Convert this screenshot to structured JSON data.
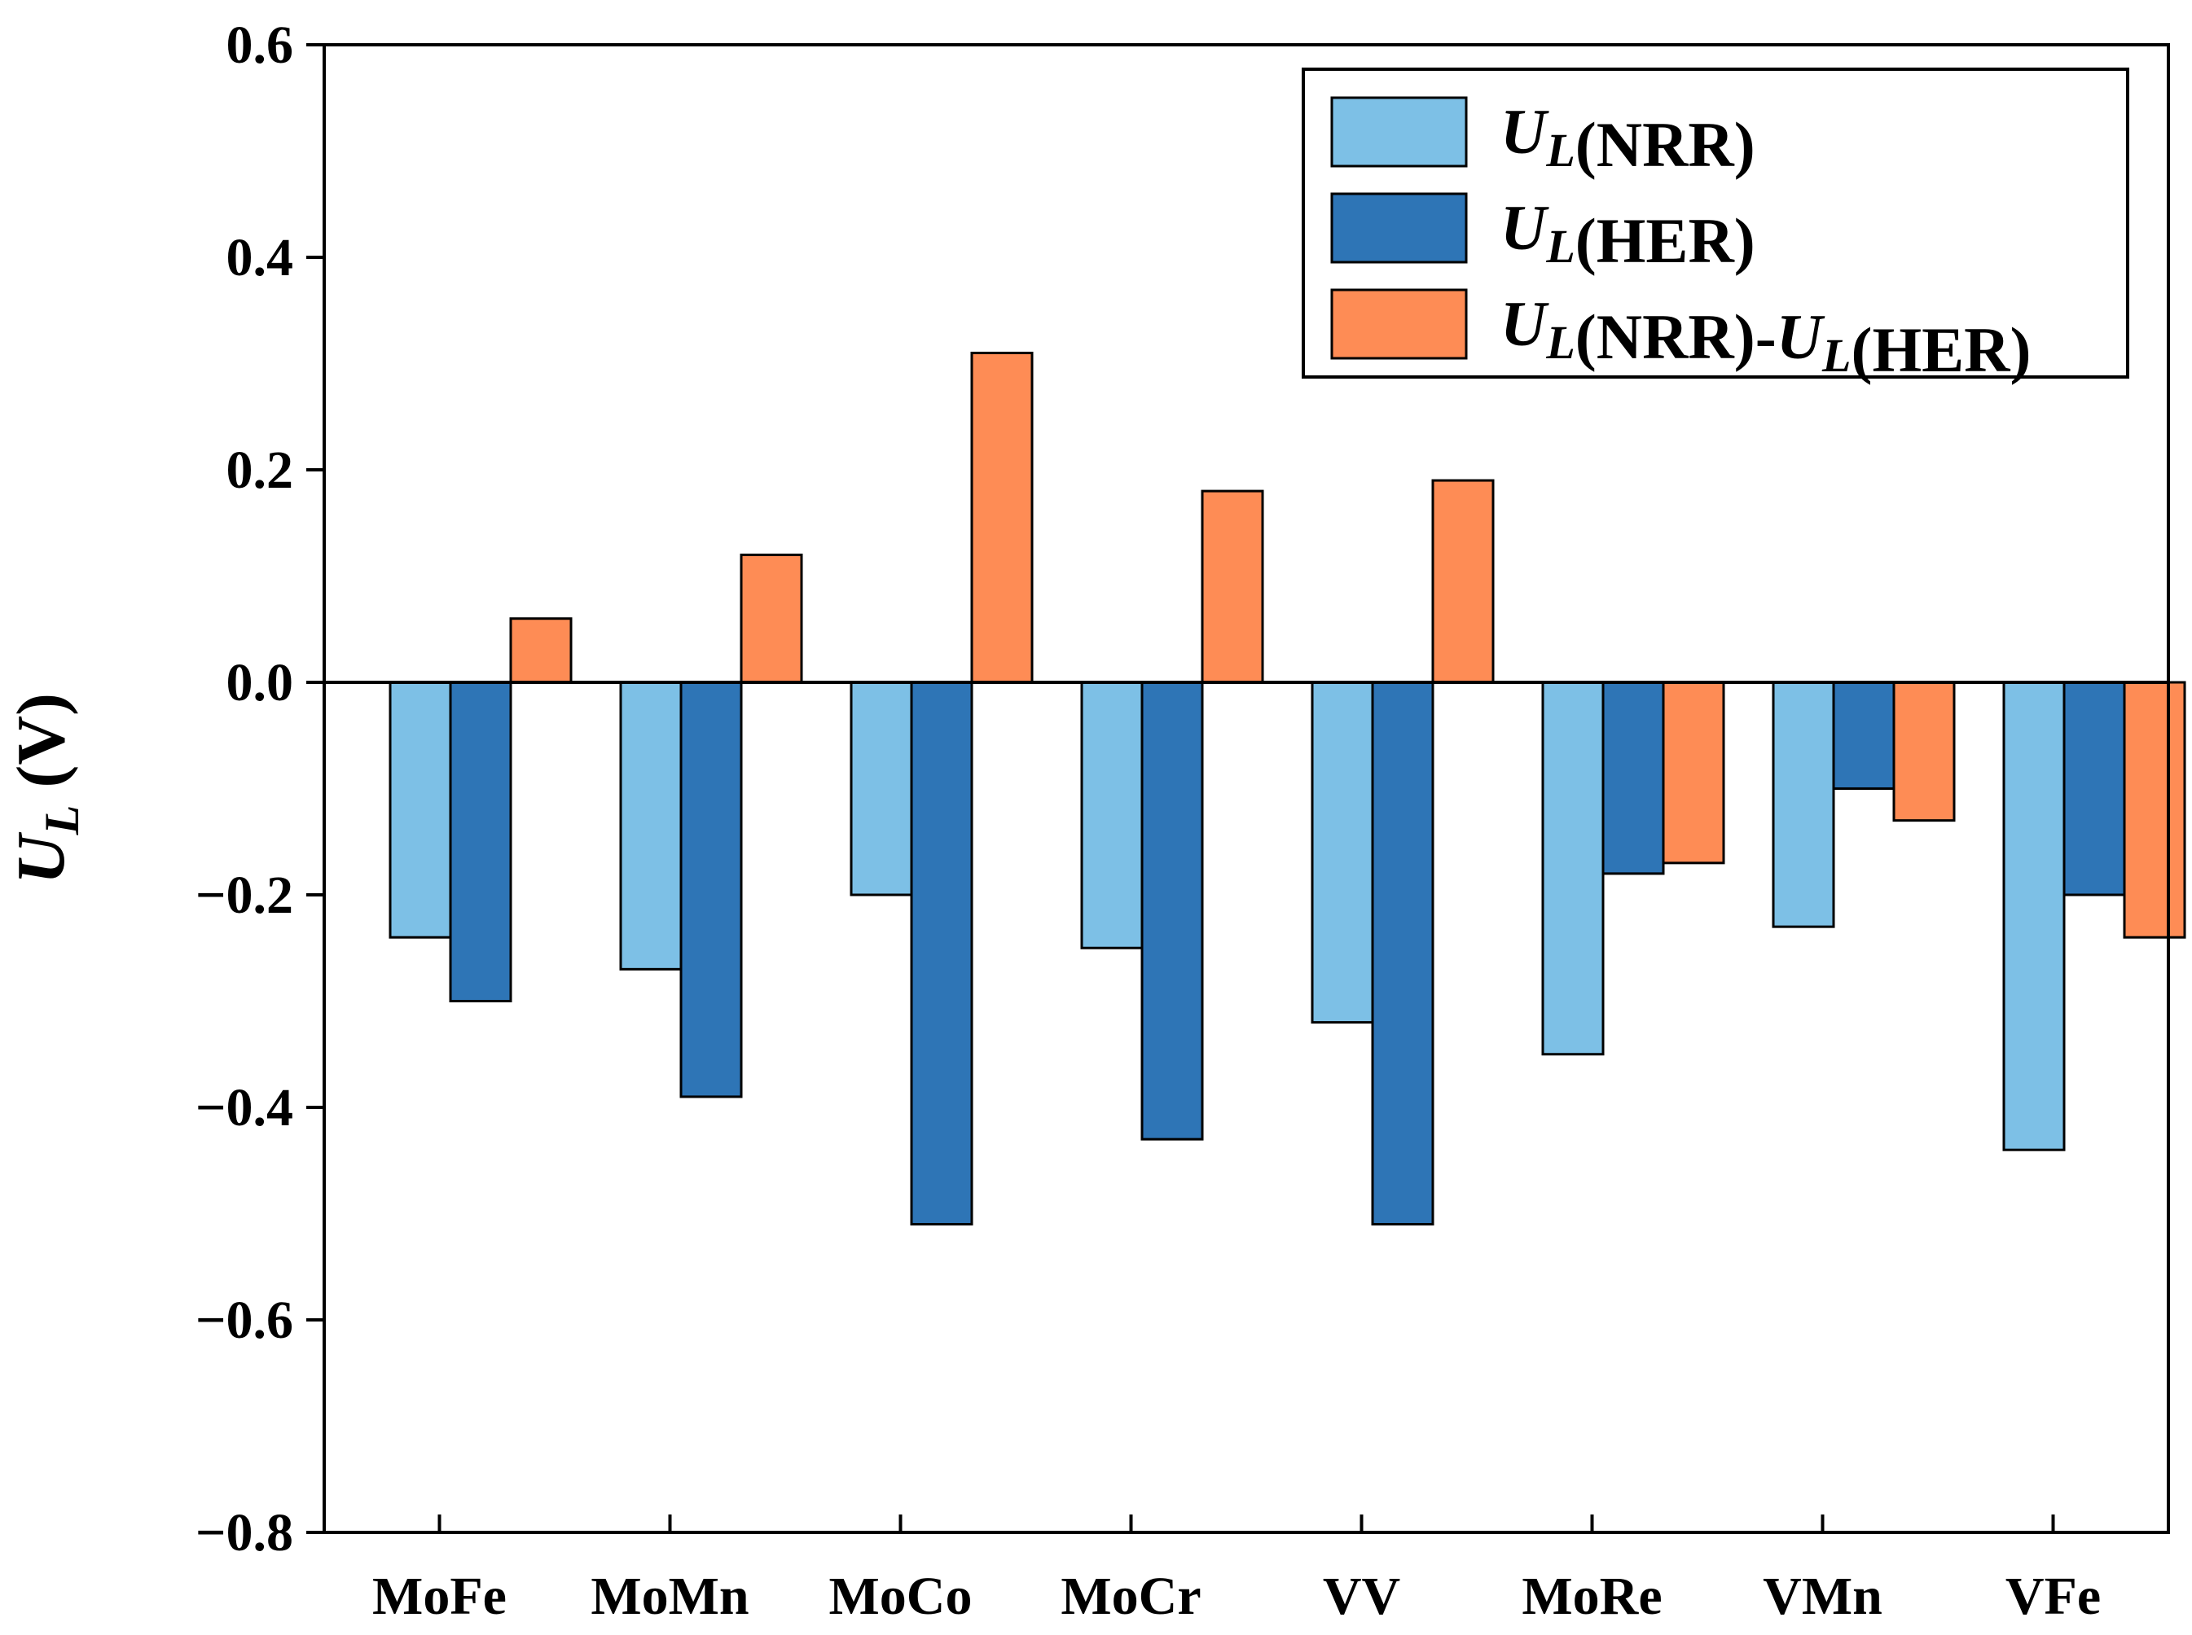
{
  "chart_data": {
    "type": "bar",
    "title": "",
    "xlabel": "",
    "ylabel": {
      "symbol": "U",
      "subscript": "L",
      "unit": "(V)"
    },
    "ylim": [
      -0.8,
      0.6
    ],
    "yticks": [
      0.6,
      0.4,
      0.2,
      0.0,
      -0.2,
      -0.4,
      -0.6,
      -0.8
    ],
    "ytick_labels": [
      "0.6",
      "0.4",
      "0.2",
      "0.0",
      "−0.2",
      "−0.4",
      "−0.6",
      "−0.8"
    ],
    "categories": [
      "MoFe",
      "MoMn",
      "MoCo",
      "MoCr",
      "VV",
      "MoRe",
      "VMn",
      "VFe"
    ],
    "legend_position": "top-right",
    "series": [
      {
        "name": "U_L(NRR)",
        "legend": [
          {
            "text": "U",
            "sub": "L",
            "italic": true
          },
          {
            "text": "(NRR)",
            "italic": false
          }
        ],
        "color": "#7dc0e6",
        "values": [
          -0.24,
          -0.27,
          -0.2,
          -0.25,
          -0.32,
          -0.35,
          -0.23,
          -0.44
        ]
      },
      {
        "name": "U_L(HER)",
        "legend": [
          {
            "text": "U",
            "sub": "L",
            "italic": true
          },
          {
            "text": "(HER)",
            "italic": false
          }
        ],
        "color": "#2e75b6",
        "values": [
          -0.3,
          -0.39,
          -0.51,
          -0.43,
          -0.51,
          -0.18,
          -0.1,
          -0.2
        ]
      },
      {
        "name": "U_L(NRR)-U_L(HER)",
        "legend": [
          {
            "text": "U",
            "sub": "L",
            "italic": true
          },
          {
            "text": "(NRR)-",
            "italic": false
          },
          {
            "text": "U",
            "sub": "L",
            "italic": true
          },
          {
            "text": "(HER)",
            "italic": false
          }
        ],
        "color": "#fe8c55",
        "values": [
          0.06,
          0.12,
          0.31,
          0.18,
          0.19,
          -0.17,
          -0.13,
          -0.24
        ]
      }
    ]
  }
}
